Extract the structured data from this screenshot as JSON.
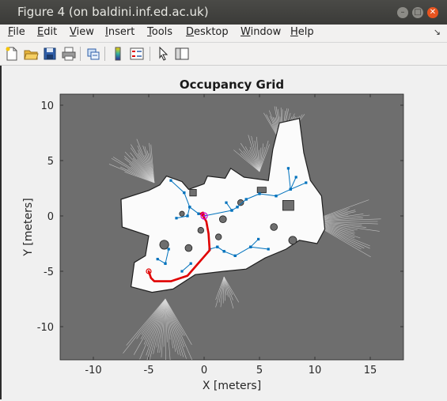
{
  "window": {
    "title": "Figure 4 (on baldini.inf.ed.ac.uk)"
  },
  "menu": [
    {
      "acc": "F",
      "rest": "ile"
    },
    {
      "acc": "E",
      "rest": "dit"
    },
    {
      "acc": "V",
      "rest": "iew"
    },
    {
      "acc": "I",
      "rest": "nsert"
    },
    {
      "acc": "T",
      "rest": "ools"
    },
    {
      "acc": "D",
      "rest": "esktop"
    },
    {
      "acc": "W",
      "rest": "indow"
    },
    {
      "acc": "H",
      "rest": "elp"
    }
  ],
  "menu_arrow": "↘",
  "toolbar_icons": [
    "new-figure-icon",
    "open-folder-icon",
    "save-icon",
    "print-icon",
    "link-plot-icon",
    "colorbar-icon",
    "legend-icon",
    "pointer-icon",
    "property-inspector-icon"
  ],
  "colors": {
    "map_bg": "#6e6e6e",
    "free_space": "#ffffff",
    "path": "#e00000",
    "tree": "#0072bd",
    "goal": "#d000d0"
  },
  "chart_data": {
    "type": "scatter",
    "title": "Occupancy Grid",
    "xlabel": "X [meters]",
    "ylabel": "Y [meters]",
    "xlim": [
      -13,
      18
    ],
    "ylim": [
      -13,
      11
    ],
    "xticks": [
      -10,
      -5,
      0,
      5,
      10,
      15
    ],
    "yticks": [
      10,
      5,
      0,
      -5,
      -10
    ],
    "grid": false,
    "series": [
      {
        "kind": "planned-path",
        "color": "#e00000",
        "x": [
          -5.0,
          -4.8,
          -4.5,
          -3.0,
          -1.5,
          0.5,
          0.4,
          0.2,
          -0.1,
          -0.3,
          -0.1,
          0.0
        ],
        "y": [
          -5.0,
          -5.6,
          -5.9,
          -5.9,
          -5.4,
          -3.1,
          -1.6,
          -0.5,
          0.0,
          0.2,
          0.3,
          0.0
        ]
      },
      {
        "kind": "search-tree-edges",
        "color": "#0072bd",
        "segments": [
          [
            [
              -3.0,
              3.2
            ],
            [
              -1.8,
              2.1
            ]
          ],
          [
            [
              -1.8,
              2.1
            ],
            [
              -1.3,
              0.8
            ]
          ],
          [
            [
              -1.3,
              0.8
            ],
            [
              -1.5,
              0.0
            ]
          ],
          [
            [
              -1.5,
              0.0
            ],
            [
              -2.5,
              -0.2
            ]
          ],
          [
            [
              -1.3,
              0.8
            ],
            [
              -0.5,
              0.2
            ]
          ],
          [
            [
              -0.5,
              0.2
            ],
            [
              0.0,
              0.0
            ]
          ],
          [
            [
              0.0,
              0.0
            ],
            [
              2.5,
              0.5
            ]
          ],
          [
            [
              2.5,
              0.5
            ],
            [
              3.0,
              0.8
            ]
          ],
          [
            [
              3.0,
              0.8
            ],
            [
              3.8,
              1.5
            ]
          ],
          [
            [
              3.8,
              1.5
            ],
            [
              5.0,
              2.0
            ]
          ],
          [
            [
              5.0,
              2.0
            ],
            [
              6.5,
              1.8
            ]
          ],
          [
            [
              6.5,
              1.8
            ],
            [
              7.8,
              2.4
            ]
          ],
          [
            [
              7.8,
              2.4
            ],
            [
              8.3,
              3.5
            ]
          ],
          [
            [
              7.8,
              2.4
            ],
            [
              7.6,
              4.3
            ]
          ],
          [
            [
              7.8,
              2.4
            ],
            [
              9.2,
              3.0
            ]
          ],
          [
            [
              2.5,
              0.5
            ],
            [
              2.0,
              1.2
            ]
          ],
          [
            [
              0.5,
              -3.0
            ],
            [
              1.2,
              -2.8
            ]
          ],
          [
            [
              1.2,
              -2.8
            ],
            [
              1.8,
              -3.2
            ]
          ],
          [
            [
              1.8,
              -3.2
            ],
            [
              2.8,
              -3.6
            ]
          ],
          [
            [
              2.8,
              -3.6
            ],
            [
              4.2,
              -2.8
            ]
          ],
          [
            [
              4.2,
              -2.8
            ],
            [
              5.8,
              -3.0
            ]
          ],
          [
            [
              4.2,
              -2.8
            ],
            [
              4.9,
              -2.1
            ]
          ],
          [
            [
              -3.5,
              -4.3
            ],
            [
              -3.2,
              -3.0
            ]
          ],
          [
            [
              -3.5,
              -4.3
            ],
            [
              -4.2,
              -3.9
            ]
          ],
          [
            [
              -2.0,
              -5.0
            ],
            [
              -1.2,
              -4.3
            ]
          ]
        ]
      },
      {
        "kind": "start-marker",
        "color": "#e00000",
        "x": [
          -5.0
        ],
        "y": [
          -5.0
        ]
      },
      {
        "kind": "goal-marker",
        "color": "#d000d0",
        "x": [
          0.0
        ],
        "y": [
          0.0
        ]
      }
    ]
  }
}
